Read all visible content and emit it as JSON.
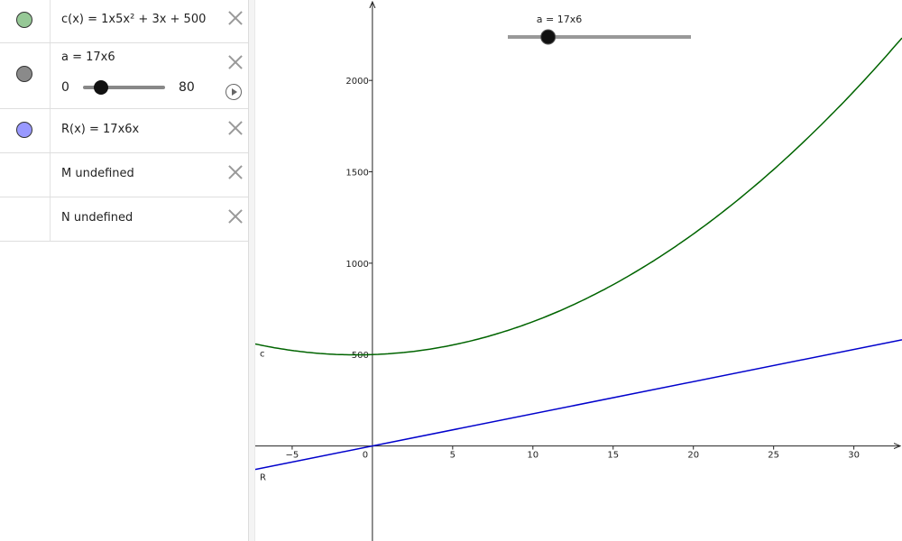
{
  "algebra": {
    "rows": [
      {
        "label": "c(x) = 1x5x² + 3x + 500",
        "color": "#96c896"
      },
      {
        "label": "a = 17x6",
        "color": "#8a8a8a",
        "slider_min": "0",
        "slider_max": "80",
        "slider_value_fraction": 0.24
      },
      {
        "label": "R(x) = 17x6x",
        "color": "#9999ff"
      },
      {
        "label": "M undefined"
      },
      {
        "label": "N undefined"
      }
    ]
  },
  "graph": {
    "slider_label": "a = 17x6",
    "slider_value_fraction": 0.22,
    "x_ticks": [
      "−5",
      "0",
      "5",
      "10",
      "15",
      "20",
      "25",
      "30"
    ],
    "y_ticks": [
      "500",
      "1000",
      "1500",
      "2000"
    ],
    "curve_c_label": "c",
    "curve_R_label": "R",
    "curve_c_color": "#006400",
    "curve_R_color": "#0000cc",
    "c_coeffs": {
      "a2": 1.5,
      "a1": 3,
      "a0": 500
    },
    "R_slope": 17.6,
    "x_range": [
      -7.3,
      33
    ],
    "y_range": [
      -520,
      2440
    ]
  }
}
